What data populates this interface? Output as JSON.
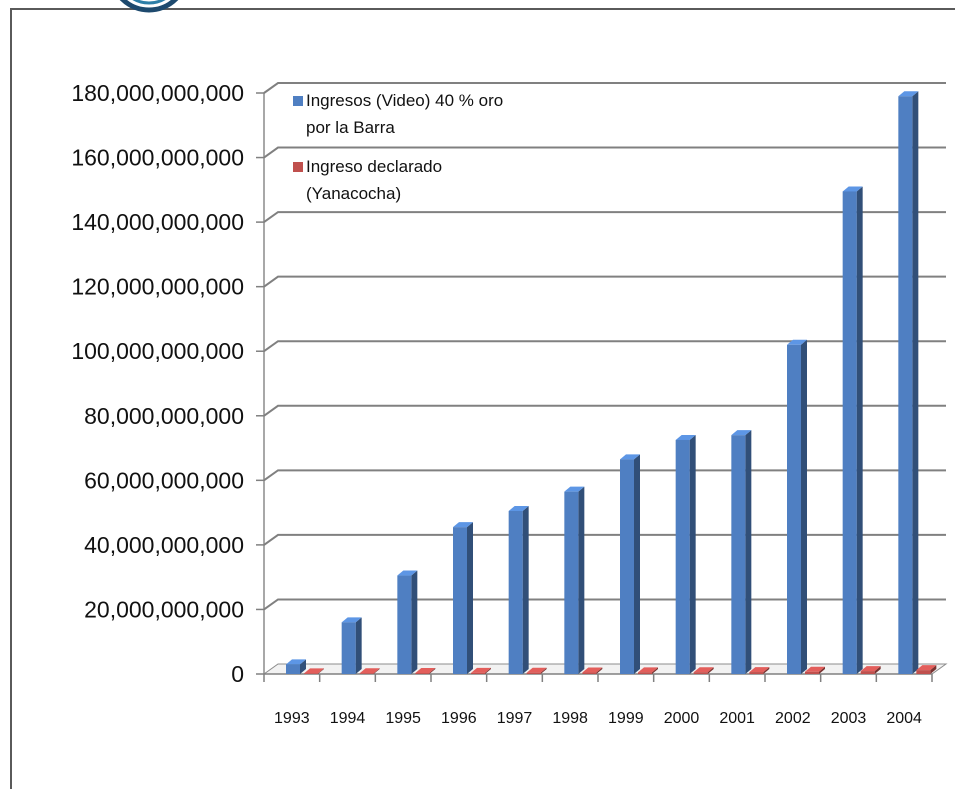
{
  "chart_data": {
    "type": "bar",
    "categories": [
      "1993",
      "1994",
      "1995",
      "1996",
      "1997",
      "1998",
      "1999",
      "2000",
      "2001",
      "2002",
      "2003",
      "2004"
    ],
    "series": [
      {
        "name": "Ingresos (Video) 40 % oro por la Barra",
        "name_lines": [
          "Ingresos (Video) 40 % oro",
          "por la Barra"
        ],
        "color": "#4f7fc2",
        "values": [
          3000000000,
          16000000000,
          30500000000,
          45500000000,
          50500000000,
          56500000000,
          66500000000,
          72500000000,
          74000000000,
          102000000000,
          149500000000,
          179000000000
        ]
      },
      {
        "name": "Ingreso declarado (Yanacocha)",
        "name_lines": [
          "Ingreso declarado",
          "(Yanacocha)"
        ],
        "color": "#c0504d",
        "values": [
          200000000,
          250000000,
          300000000,
          350000000,
          400000000,
          450000000,
          500000000,
          550000000,
          600000000,
          700000000,
          900000000,
          1200000000
        ]
      }
    ],
    "ylim": [
      0,
      180000000000
    ],
    "yticks": [
      "0",
      "20,000,000,000",
      "40,000,000,000",
      "60,000,000,000",
      "80,000,000,000",
      "100,000,000,000",
      "120,000,000,000",
      "140,000,000,000",
      "160,000,000,000",
      "180,000,000,000"
    ],
    "grid": true,
    "legend_position": "top-left",
    "style": "3d-column"
  }
}
